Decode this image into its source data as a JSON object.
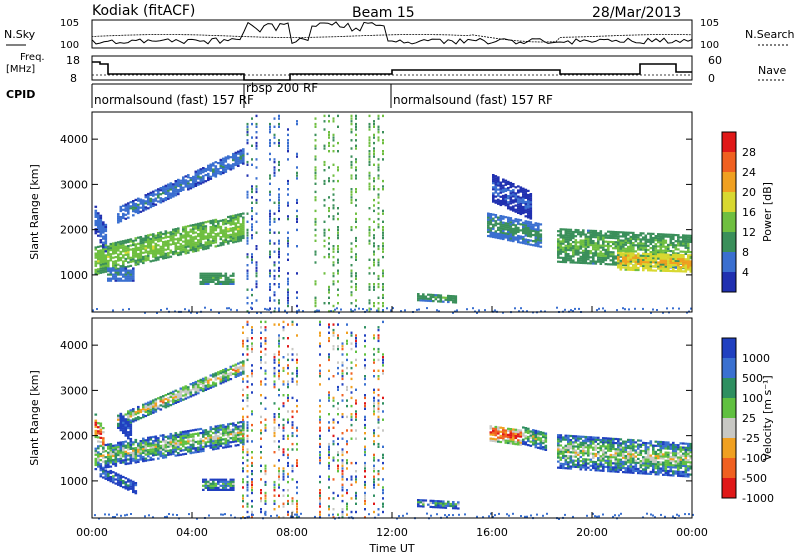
{
  "header": {
    "station": "Kodiak (fitACF)",
    "beam": "Beam 15",
    "date": "28/Mar/2013"
  },
  "noise_panel": {
    "left_label": "N.Sky",
    "right_label": "N.Search",
    "y_ticks": [
      "10^5",
      "10^0"
    ]
  },
  "freq_panel": {
    "left_label_1": "Freq.",
    "left_label_2": "[MHz]",
    "right_label": "Nave",
    "y_ticks_left": [
      "18",
      "8"
    ],
    "y_ticks_right": [
      "60",
      "0"
    ]
  },
  "cpid": {
    "label": "CPID",
    "segments": [
      "normalsound (fast) 157 RF",
      "rbsp 200 RF",
      "normalsound (fast) 157 RF"
    ]
  },
  "colors": {
    "power_scale": [
      "#2030b0",
      "#3a6fd0",
      "#3a8f5a",
      "#6fbf40",
      "#d8d830",
      "#f0a020",
      "#f06020",
      "#e01818"
    ],
    "velocity_scale": [
      "#2040c0",
      "#3a70d0",
      "#2e8f60",
      "#60c040",
      "#c8c8c4",
      "#f0a020",
      "#f06020",
      "#e01818"
    ]
  },
  "chart_data": [
    {
      "type": "heatmap",
      "panel": "power",
      "xlabel": "Time UT",
      "ylabel": "Slant Range [km]",
      "xlim": [
        0,
        24
      ],
      "ylim": [
        180,
        4600
      ],
      "x_tick_labels": [
        "00:00",
        "04:00",
        "08:00",
        "12:00",
        "16:00",
        "20:00",
        "00:00"
      ],
      "y_ticks": [
        1000,
        2000,
        3000,
        4000
      ],
      "colorbar_label": "Power [dB]",
      "colorbar_ticks": [
        4,
        8,
        12,
        16,
        20,
        24,
        28
      ],
      "colorbar_range": [
        0,
        32
      ],
      "regions": [
        {
          "t0": 0.1,
          "t1": 6.0,
          "r_start": 1300,
          "r_end": 2050,
          "w": 300,
          "v": 15
        },
        {
          "t0": 1.0,
          "t1": 6.0,
          "r_start": 2300,
          "r_end": 3600,
          "w": 160,
          "v": 8
        },
        {
          "t0": 0.1,
          "t1": 0.6,
          "r_start": 2200,
          "r_end": 1700,
          "w": 300,
          "v": 7
        },
        {
          "t0": 4.3,
          "t1": 5.6,
          "r_start": 900,
          "r_end": 900,
          "w": 120,
          "v": 12
        },
        {
          "t0": 0.6,
          "t1": 1.7,
          "r_start": 1000,
          "r_end": 1000,
          "w": 150,
          "v": 8
        },
        {
          "t0": 13.0,
          "t1": 14.5,
          "r_start": 500,
          "r_end": 450,
          "w": 80,
          "v": 12
        },
        {
          "t0": 15.8,
          "t1": 18.0,
          "r_start": 2100,
          "r_end": 1850,
          "w": 260,
          "v": 10
        },
        {
          "t0": 16.0,
          "t1": 17.6,
          "r_start": 2900,
          "r_end": 2500,
          "w": 300,
          "v": 5
        },
        {
          "t0": 18.6,
          "t1": 24.0,
          "r_start": 1650,
          "r_end": 1500,
          "w": 380,
          "v": 13
        },
        {
          "t0": 21.0,
          "t1": 24.0,
          "r_start": 1300,
          "r_end": 1250,
          "w": 200,
          "v": 21
        }
      ],
      "streaks": [
        {
          "t0": 6.0,
          "t1": 8.2,
          "v": 6
        },
        {
          "t0": 8.9,
          "t1": 11.6,
          "v": 12
        }
      ]
    },
    {
      "type": "heatmap",
      "panel": "velocity",
      "xlabel": "Time UT",
      "ylabel": "Slant Range [km]",
      "xlim": [
        0,
        24
      ],
      "ylim": [
        180,
        4600
      ],
      "x_tick_labels": [
        "00:00",
        "04:00",
        "08:00",
        "12:00",
        "16:00",
        "20:00",
        "00:00"
      ],
      "y_ticks": [
        1000,
        2000,
        3000,
        4000
      ],
      "colorbar_label": "Velocity [m s⁻¹]",
      "colorbar_ticks": [
        1000,
        500,
        100,
        25,
        -25,
        -100,
        -500,
        -1000
      ],
      "regions": [
        {
          "t0": 0.1,
          "t1": 6.0,
          "r_start": 1500,
          "r_end": 2050,
          "w": 260,
          "v": 4
        },
        {
          "t0": 1.0,
          "t1": 6.0,
          "r_start": 2300,
          "r_end": 3500,
          "w": 150,
          "v": 5
        },
        {
          "t0": 0.1,
          "t1": 0.5,
          "r_start": 2200,
          "r_end": 1800,
          "w": 250,
          "v": 7
        },
        {
          "t0": 1.1,
          "t1": 1.6,
          "r_start": 2300,
          "r_end": 2000,
          "w": 200,
          "v": 0
        },
        {
          "t0": 4.4,
          "t1": 5.6,
          "r_start": 900,
          "r_end": 900,
          "w": 120,
          "v": 3
        },
        {
          "t0": 0.3,
          "t1": 1.8,
          "r_start": 1200,
          "r_end": 800,
          "w": 120,
          "v": 2
        },
        {
          "t0": 13.0,
          "t1": 14.6,
          "r_start": 500,
          "r_end": 450,
          "w": 80,
          "v": 3
        },
        {
          "t0": 15.9,
          "t1": 17.2,
          "r_start": 2050,
          "r_end": 1950,
          "w": 180,
          "v": 7
        },
        {
          "t0": 17.2,
          "t1": 18.2,
          "r_start": 2000,
          "r_end": 1850,
          "w": 200,
          "v": 4
        },
        {
          "t0": 18.6,
          "t1": 24.0,
          "r_start": 1650,
          "r_end": 1450,
          "w": 380,
          "v": 4
        }
      ],
      "streaks": [
        {
          "t0": 6.0,
          "t1": 8.2,
          "v": 3
        },
        {
          "t0": 8.9,
          "t1": 11.6,
          "v": 3
        }
      ]
    }
  ]
}
